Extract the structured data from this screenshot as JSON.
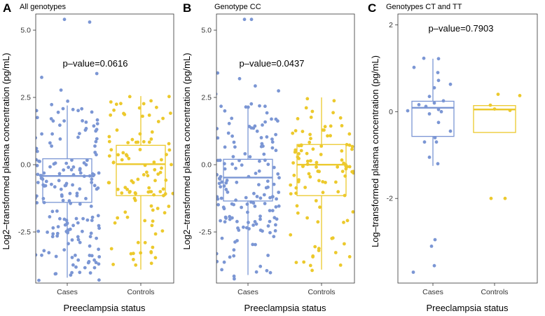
{
  "chart_data": [
    {
      "type": "box",
      "panel": "A",
      "title": "All genotypes",
      "xlabel": "Preeclampsia status",
      "ylabel": "Log2–transformed  plasma concentration (pg/mL)",
      "categories": [
        "Cases",
        "Controls"
      ],
      "colors": [
        "#7b96d4",
        "#ecc92c"
      ],
      "ylim": [
        -4.4,
        5.6
      ],
      "yticks": [
        5.0,
        2.5,
        0.0,
        -2.5
      ],
      "ytick_labels": [
        "5.0",
        "2.5",
        "0.0",
        "-2.5"
      ],
      "annotation": "p–value=0.0616",
      "annotation_pos": [
        1.5,
        3.9
      ],
      "boxes": [
        {
          "group": "Cases",
          "whisker_low": -4.2,
          "q1": -1.4,
          "median": -0.42,
          "q3": 0.22,
          "whisker_high": 2.2
        },
        {
          "group": "Controls",
          "whisker_low": -3.9,
          "q1": -1.15,
          "median": 0.02,
          "q3": 0.72,
          "whisker_high": 2.55
        }
      ],
      "points": [
        {
          "group": "Cases",
          "n": 180,
          "seed": 11,
          "dist": [
            [
              -4.3,
              -3.0,
              0.12
            ],
            [
              -3.0,
              -1.4,
              0.26
            ],
            [
              -1.4,
              0.22,
              0.35
            ],
            [
              0.22,
              2.2,
              0.24
            ],
            [
              2.2,
              3.4,
              0.03
            ]
          ],
          "extra": [
            [
              5.4,
              -0.04
            ],
            [
              5.3,
              0.32
            ]
          ]
        },
        {
          "group": "Controls",
          "n": 110,
          "seed": 23,
          "dist": [
            [
              -3.9,
              -1.15,
              0.25
            ],
            [
              -1.15,
              0.72,
              0.5
            ],
            [
              0.72,
              2.55,
              0.25
            ]
          ],
          "extra": []
        }
      ]
    },
    {
      "type": "box",
      "panel": "B",
      "title": "Genotype CC",
      "xlabel": "Preeclampsia status",
      "ylabel": "Log2–transformed plasma concentration (pg/mL)",
      "categories": [
        "Cases",
        "Controls"
      ],
      "colors": [
        "#7b96d4",
        "#ecc92c"
      ],
      "ylim": [
        -4.4,
        5.6
      ],
      "yticks": [
        5.0,
        2.5,
        0.0,
        -2.5
      ],
      "ytick_labels": [
        "5.0",
        "2.5",
        "0.0",
        "-2.5"
      ],
      "annotation": "p–value=0.0437",
      "annotation_pos": [
        1.5,
        3.9
      ],
      "boxes": [
        {
          "group": "Cases",
          "whisker_low": -4.1,
          "q1": -1.35,
          "median": -0.48,
          "q3": 0.2,
          "whisker_high": 2.2
        },
        {
          "group": "Controls",
          "whisker_low": -3.9,
          "q1": -1.15,
          "median": 0.0,
          "q3": 0.75,
          "whisker_high": 2.5
        }
      ],
      "points": [
        {
          "group": "Cases",
          "n": 160,
          "seed": 37,
          "dist": [
            [
              -4.3,
              -3.0,
              0.12
            ],
            [
              -3.0,
              -1.35,
              0.26
            ],
            [
              -1.35,
              0.2,
              0.35
            ],
            [
              0.2,
              2.2,
              0.24
            ],
            [
              2.2,
              3.5,
              0.03
            ]
          ],
          "extra": [
            [
              5.4,
              -0.05
            ],
            [
              5.4,
              0.05
            ]
          ]
        },
        {
          "group": "Controls",
          "n": 105,
          "seed": 41,
          "dist": [
            [
              -4.0,
              -1.15,
              0.25
            ],
            [
              -1.15,
              0.75,
              0.5
            ],
            [
              0.75,
              2.5,
              0.25
            ]
          ],
          "extra": []
        }
      ]
    },
    {
      "type": "box",
      "panel": "C",
      "title": "Genotypes CT and TT",
      "xlabel": "Preeclampsia status",
      "ylabel": "Log–transformed plasma concentration (pg/mL)",
      "categories": [
        "Cases",
        "Controls"
      ],
      "colors": [
        "#7b96d4",
        "#ecc92c"
      ],
      "ylim": [
        -3.95,
        2.25
      ],
      "yticks": [
        2,
        0,
        -2
      ],
      "ytick_labels": [
        "2",
        "0",
        "-2"
      ],
      "annotation": "p–value=0.7903",
      "annotation_pos": [
        1.5,
        1.95
      ],
      "boxes": [
        {
          "group": "Cases",
          "whisker_low": -1.25,
          "q1": -0.57,
          "median": 0.09,
          "q3": 0.24,
          "whisker_high": 1.22
        },
        {
          "group": "Controls",
          "whisker_low": -0.48,
          "q1": -0.48,
          "median": 0.05,
          "q3": 0.14,
          "whisker_high": 0.14
        }
      ],
      "points": [
        {
          "group": "Cases",
          "n": 0,
          "seed": 5,
          "dist": [],
          "extra": [
            [
              1.23,
              -0.13
            ],
            [
              1.22,
              0.08
            ],
            [
              1.02,
              -0.27
            ],
            [
              0.9,
              0.07
            ],
            [
              0.72,
              0.08
            ],
            [
              0.63,
              0.25
            ],
            [
              0.55,
              0.02
            ],
            [
              0.35,
              -0.05
            ],
            [
              0.25,
              0.15
            ],
            [
              0.2,
              0.02
            ],
            [
              0.16,
              -0.2
            ],
            [
              0.12,
              -0.1
            ],
            [
              0.05,
              0.08
            ],
            [
              0.02,
              -0.36
            ],
            [
              0.0,
              0.12
            ],
            [
              -0.05,
              -0.05
            ],
            [
              -0.25,
              0.08
            ],
            [
              -0.45,
              0.25
            ],
            [
              -0.6,
              0.03
            ],
            [
              -0.7,
              0.05
            ],
            [
              -0.7,
              -0.12
            ],
            [
              -1.05,
              -0.05
            ],
            [
              -1.2,
              0.07
            ],
            [
              -2.95,
              0.03
            ],
            [
              -3.1,
              -0.02
            ],
            [
              -3.55,
              0.02
            ],
            [
              -3.7,
              -0.28
            ]
          ]
        },
        {
          "group": "Controls",
          "n": 0,
          "seed": 9,
          "dist": [],
          "extra": [
            [
              0.4,
              0.05
            ],
            [
              0.37,
              0.36
            ],
            [
              0.15,
              -0.06
            ],
            [
              0.06,
              0.0
            ],
            [
              0.03,
              0.22
            ],
            [
              -2.0,
              -0.05
            ],
            [
              -2.0,
              0.15
            ]
          ]
        }
      ]
    }
  ]
}
